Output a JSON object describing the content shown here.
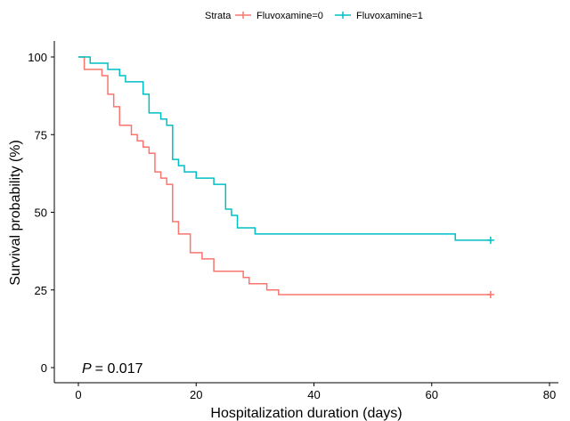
{
  "chart_data": {
    "type": "line",
    "subtype": "kaplan-meier step",
    "xlabel": "Hospitalization duration (days)",
    "ylabel": "Survival probability (%)",
    "xlim": [
      0,
      80
    ],
    "ylim": [
      0,
      100
    ],
    "x_ticks": [
      0,
      20,
      40,
      60,
      80
    ],
    "y_ticks": [
      0,
      25,
      50,
      75,
      100
    ],
    "grid": false,
    "legend": {
      "placement": "top-center",
      "title": "Strata",
      "entries": [
        "Fluvoxamine=0",
        "Fluvoxamine=1"
      ]
    },
    "annotation": {
      "p_label": "P",
      "p_value": "= 0.017"
    },
    "series": [
      {
        "name": "Fluvoxamine=0",
        "color": "#f8766d",
        "points": [
          [
            0,
            100
          ],
          [
            1,
            96
          ],
          [
            4,
            94
          ],
          [
            5,
            88
          ],
          [
            6,
            84
          ],
          [
            7,
            78
          ],
          [
            9,
            75
          ],
          [
            10,
            73
          ],
          [
            11,
            71
          ],
          [
            12,
            69
          ],
          [
            13,
            63
          ],
          [
            14,
            61
          ],
          [
            15,
            59
          ],
          [
            16,
            47
          ],
          [
            17,
            43
          ],
          [
            19,
            37
          ],
          [
            21,
            35
          ],
          [
            23,
            31
          ],
          [
            28,
            29
          ],
          [
            29,
            27
          ],
          [
            32,
            25
          ],
          [
            34,
            23.5
          ],
          [
            70,
            23.5
          ]
        ],
        "censor": [
          [
            70,
            23.5
          ]
        ]
      },
      {
        "name": "Fluvoxamine=1",
        "color": "#00bfc4",
        "points": [
          [
            0,
            100
          ],
          [
            2,
            98
          ],
          [
            5,
            96
          ],
          [
            7,
            94
          ],
          [
            8,
            92
          ],
          [
            11,
            88
          ],
          [
            12,
            82
          ],
          [
            14,
            80
          ],
          [
            15,
            78
          ],
          [
            16,
            67
          ],
          [
            17,
            65
          ],
          [
            18,
            63
          ],
          [
            20,
            61
          ],
          [
            23,
            59
          ],
          [
            25,
            51
          ],
          [
            26,
            49
          ],
          [
            27,
            45
          ],
          [
            30,
            43
          ],
          [
            64,
            41
          ],
          [
            70,
            41
          ]
        ],
        "censor": [
          [
            70,
            41
          ]
        ]
      }
    ]
  }
}
